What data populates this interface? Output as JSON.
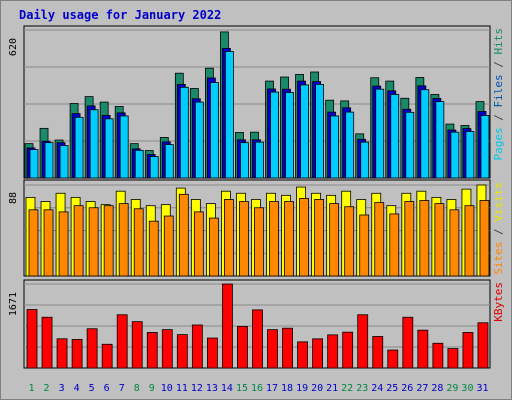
{
  "chart_data": {
    "type": "bar",
    "title": "Daily usage for January 2022",
    "categories": [
      "1",
      "2",
      "3",
      "4",
      "5",
      "6",
      "7",
      "8",
      "9",
      "10",
      "11",
      "12",
      "13",
      "14",
      "15",
      "16",
      "17",
      "18",
      "19",
      "20",
      "21",
      "22",
      "23",
      "24",
      "25",
      "26",
      "27",
      "28",
      "29",
      "30",
      "31"
    ],
    "weekend_days": [
      "1",
      "2",
      "8",
      "9",
      "15",
      "16",
      "22",
      "23",
      "29",
      "30"
    ],
    "weekday_color": "#0000cc",
    "weekend_color": "#008844",
    "panels": [
      {
        "id": "top",
        "ymax_label": "620",
        "ylim": [
          0,
          620
        ],
        "side_labels": [
          {
            "text": "Pages",
            "color": "#00c8e6"
          },
          {
            "text": " / ",
            "color": "#444444"
          },
          {
            "text": "Files",
            "color": "#0055aa"
          },
          {
            "text": " / ",
            "color": "#444444"
          },
          {
            "text": "Hits",
            "color": "#1a8a6a"
          }
        ],
        "series": [
          {
            "name": "Hits",
            "color": "#1a8a6a",
            "values": [
              144,
              208,
              159,
              312,
              341,
              318,
              300,
              144,
              115,
              170,
              439,
              375,
              460,
              612,
              191,
              192,
              406,
              423,
              434,
              444,
              326,
              323,
              185,
              420,
              406,
              334,
              421,
              350,
              226,
              220,
              320
            ]
          },
          {
            "name": "Files",
            "color": "#0000cc",
            "values": [
              126,
              154,
              148,
              270,
              302,
              262,
              273,
              122,
              98,
              151,
              392,
              332,
              419,
              543,
              160,
              160,
              373,
              372,
              406,
              404,
              276,
              294,
              162,
              385,
              365,
              288,
              386,
              333,
              201,
              207,
              279
            ]
          },
          {
            "name": "Pages",
            "color": "#00ccff",
            "values": [
              119,
              148,
              136,
              254,
              286,
              248,
              260,
              116,
              90,
              140,
              380,
              318,
              400,
              530,
              148,
              150,
              360,
              358,
              390,
              392,
              260,
              276,
              150,
              372,
              350,
              275,
              370,
              320,
              192,
              195,
              262
            ]
          }
        ]
      },
      {
        "id": "mid",
        "ymax_label": "88",
        "ylim": [
          0,
          88
        ],
        "side_labels": [
          {
            "text": "Sites",
            "color": "#ff8800"
          },
          {
            "text": " / ",
            "color": "#444444"
          },
          {
            "text": "Visits",
            "color": "#e6e600"
          }
        ],
        "series": [
          {
            "name": "Visits",
            "color": "#ffff00",
            "values": [
              76,
              72,
              80,
              76,
              72,
              69,
              82,
              74,
              68,
              69,
              85,
              74,
              70,
              82,
              80,
              74,
              80,
              78,
              86,
              80,
              78,
              82,
              74,
              80,
              68,
              80,
              82,
              76,
              74,
              84,
              88
            ]
          },
          {
            "name": "Sites",
            "color": "#ff8800",
            "values": [
              64,
              64,
              62,
              68,
              66,
              68,
              70,
              65,
              53,
              58,
              79,
              62,
              56,
              74,
              72,
              66,
              72,
              72,
              75,
              74,
              70,
              67,
              59,
              71,
              60,
              72,
              73,
              70,
              64,
              68,
              73
            ]
          }
        ]
      },
      {
        "id": "bot",
        "ymax_label": "1671",
        "ylim": [
          0,
          1671
        ],
        "side_labels": [
          {
            "text": "KBytes",
            "color": "#dd0000"
          }
        ],
        "series": [
          {
            "name": "KBytes",
            "color": "#ff0000",
            "values": [
              1163,
              1010,
              581,
              568,
              781,
              472,
              1059,
              922,
              707,
              763,
              664,
              856,
              596,
              1671,
              826,
              1156,
              763,
              792,
              520,
              580,
              659,
              713,
              1059,
              627,
              357,
              1010,
              753,
              492,
              387,
              707,
              900
            ]
          }
        ]
      }
    ]
  }
}
